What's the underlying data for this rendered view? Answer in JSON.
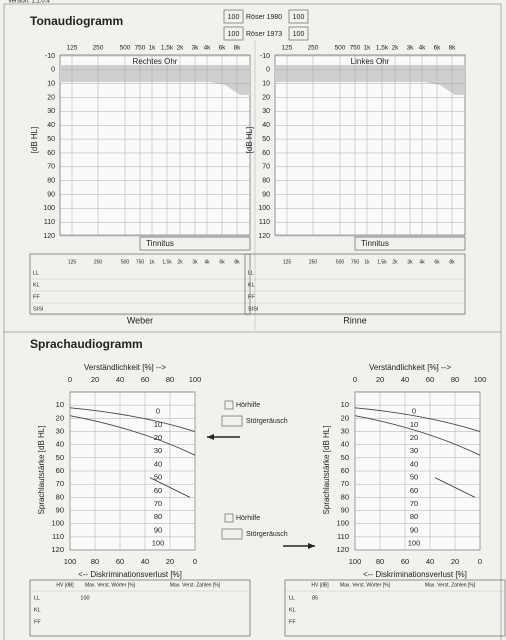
{
  "header": {
    "version": "Version: 1.1.0.4"
  },
  "tonaudiogramm": {
    "title": "Tonaudiogramm",
    "roeser": [
      {
        "left": "100",
        "label": "Röser 1980",
        "right": "100"
      },
      {
        "left": "100",
        "label": "Röser 1973",
        "right": "100"
      }
    ],
    "frequencies": [
      "125",
      "250",
      "500",
      "750",
      "1k",
      "1,5k",
      "2k",
      "3k",
      "4k",
      "6k",
      "8k"
    ],
    "db_levels": [
      -10,
      0,
      10,
      20,
      30,
      40,
      50,
      60,
      70,
      80,
      90,
      100,
      110,
      120
    ],
    "axis_label": "[dB HL]",
    "tinnitus": "Tinnitus",
    "test_rows": [
      "LL",
      "KL",
      "FF",
      "SISI"
    ],
    "ears": [
      {
        "title": "Rechtes Ohr",
        "test": "Weber"
      },
      {
        "title": "Linkes Ohr",
        "test": "Rinne"
      }
    ]
  },
  "sprachaudiogramm": {
    "title": "Sprachaudiogramm",
    "top_axis_label": "Verständlichkeit [%] -->",
    "top_ticks": [
      0,
      20,
      40,
      60,
      80,
      100
    ],
    "left_ticks": [
      10,
      20,
      30,
      40,
      50,
      60,
      70,
      80,
      90,
      100,
      110,
      120
    ],
    "inner_ticks": [
      0,
      10,
      20,
      30,
      40,
      50,
      60,
      70,
      80,
      90,
      100
    ],
    "bottom_ticks": [
      100,
      80,
      60,
      40,
      20,
      0
    ],
    "bottom_axis_label": "<-- Diskriminationsverlust [%]",
    "left_axis_label": "Sprachlautstärke [dB HL]",
    "options": [
      "Hörhilfe",
      "Störgeräusch"
    ],
    "table": {
      "headers": [
        "HV [dB]",
        "Max. Verst. Wörter [%]",
        "Max. Verst. Zahlen [%]"
      ],
      "rows": [
        "LL",
        "KL",
        "FF"
      ],
      "hv": [
        "100",
        "85"
      ]
    }
  }
}
